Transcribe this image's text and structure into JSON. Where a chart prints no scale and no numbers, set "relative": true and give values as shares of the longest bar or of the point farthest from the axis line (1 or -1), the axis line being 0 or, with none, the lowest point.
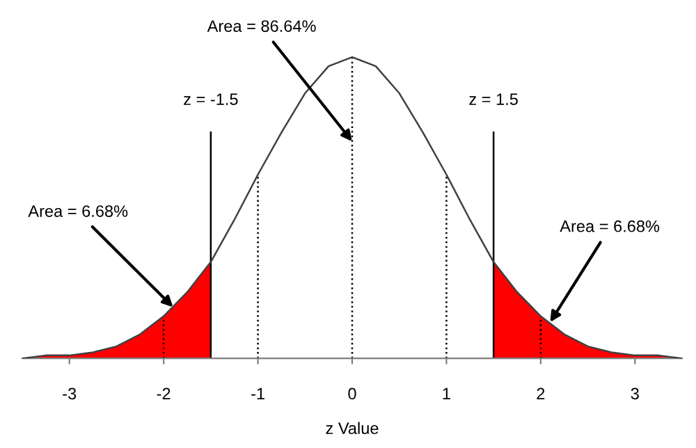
{
  "chart_data": {
    "type": "line",
    "relative": true,
    "xlabel": "z Value",
    "xlim": [
      -3.5,
      3.5
    ],
    "xticks": [
      -3,
      -2,
      -1,
      0,
      1,
      2,
      3
    ],
    "grid": false,
    "legend": false,
    "marker": "none",
    "series": [
      {
        "type": "area",
        "color": "#ff0000",
        "x": [
          -3.5,
          -3.25,
          -3,
          -2.75,
          -2.5,
          -2.25,
          -2,
          -1.75,
          -1.5
        ],
        "values": [
          0.0,
          0.01,
          0.01,
          0.02,
          0.04,
          0.08,
          0.14,
          0.22,
          0.32
        ]
      },
      {
        "type": "area",
        "color": "#ff0000",
        "x": [
          1.5,
          1.75,
          2,
          2.25,
          2.5,
          2.75,
          3,
          3.25,
          3.5
        ],
        "values": [
          0.32,
          0.22,
          0.14,
          0.08,
          0.04,
          0.02,
          0.01,
          0.01,
          0.0
        ]
      },
      {
        "color": "#404040",
        "line_style": "solid",
        "x": [
          -3.5,
          -3.25,
          -3,
          -2.75,
          -2.5,
          -2.25,
          -2,
          -1.75,
          -1.5,
          -1.25,
          -1,
          -0.75,
          -0.5,
          -0.25,
          0,
          0.25,
          0.5,
          0.75,
          1,
          1.25,
          1.5,
          1.75,
          2,
          2.25,
          2.5,
          2.75,
          3,
          3.25,
          3.5
        ],
        "values": [
          0.0,
          0.01,
          0.01,
          0.02,
          0.04,
          0.08,
          0.14,
          0.22,
          0.32,
          0.46,
          0.61,
          0.75,
          0.88,
          0.97,
          1,
          0.97,
          0.88,
          0.75,
          0.61,
          0.46,
          0.32,
          0.22,
          0.14,
          0.08,
          0.04,
          0.02,
          0.01,
          0.01,
          0.0
        ]
      }
    ],
    "ref_lines": [
      {
        "axis": "x",
        "value": -2,
        "line_style": "dotted",
        "color": "#000000"
      },
      {
        "axis": "x",
        "value": -1,
        "line_style": "dotted",
        "color": "#000000"
      },
      {
        "axis": "x",
        "value": 0,
        "line_style": "dotted",
        "color": "#000000"
      },
      {
        "axis": "x",
        "value": 1,
        "line_style": "dotted",
        "color": "#000000"
      },
      {
        "axis": "x",
        "value": 2,
        "line_style": "dotted",
        "color": "#000000"
      },
      {
        "axis": "x",
        "value": -1.5,
        "line_style": "solid",
        "color": "#000000",
        "label": "z = -1.5"
      },
      {
        "axis": "x",
        "value": 1.5,
        "line_style": "solid",
        "color": "#000000",
        "label": "z = 1.5"
      }
    ],
    "annotations": [
      {
        "text": "Area = 86.64%",
        "x": 0,
        "y": 0.72
      },
      {
        "text": "Area = 6.68%",
        "x": -1.9,
        "y": 0.17
      },
      {
        "text": "Area = 6.68%",
        "x": 2.1,
        "y": 0.12
      }
    ]
  }
}
